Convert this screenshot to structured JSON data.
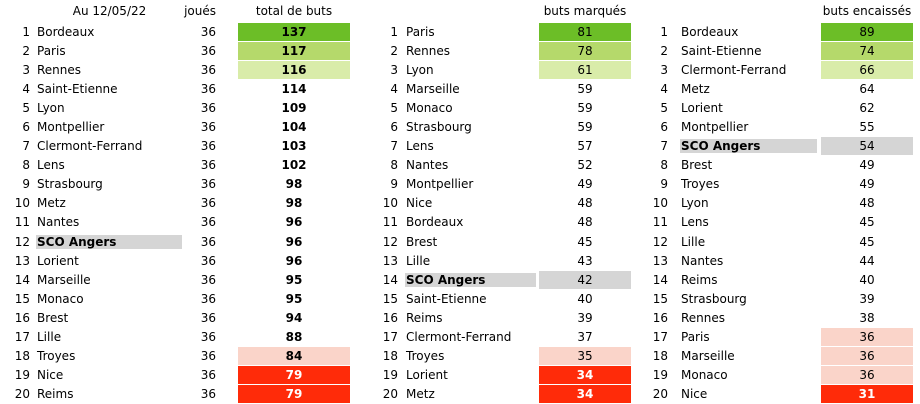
{
  "accent_colors": {
    "green_1": "#6CBE27",
    "green_2": "#B5D96B",
    "green_3": "#D9ECA9",
    "pink": "#FAD4C9",
    "red": "#FF2B09",
    "highlight_gray": "#D5D5D5"
  },
  "tables": [
    {
      "id": "total-de-buts",
      "title": "Au 12/05/22",
      "played_header": "joués",
      "value_header": "total de buts",
      "values_bold": true,
      "rows": [
        {
          "rank": 1,
          "team": "Bordeaux",
          "played": 36,
          "value": 137,
          "value_bg": "green_1"
        },
        {
          "rank": 2,
          "team": "Paris",
          "played": 36,
          "value": 117,
          "value_bg": "green_2"
        },
        {
          "rank": 3,
          "team": "Rennes",
          "played": 36,
          "value": 116,
          "value_bg": "green_3"
        },
        {
          "rank": 4,
          "team": "Saint-Etienne",
          "played": 36,
          "value": 114
        },
        {
          "rank": 5,
          "team": "Lyon",
          "played": 36,
          "value": 109
        },
        {
          "rank": 6,
          "team": "Montpellier",
          "played": 36,
          "value": 104
        },
        {
          "rank": 7,
          "team": "Clermont-Ferrand",
          "played": 36,
          "value": 103
        },
        {
          "rank": 8,
          "team": "Lens",
          "played": 36,
          "value": 102
        },
        {
          "rank": 9,
          "team": "Strasbourg",
          "played": 36,
          "value": 98
        },
        {
          "rank": 10,
          "team": "Metz",
          "played": 36,
          "value": 98
        },
        {
          "rank": 11,
          "team": "Nantes",
          "played": 36,
          "value": 96
        },
        {
          "rank": 12,
          "team": "SCO Angers",
          "played": 36,
          "value": 96,
          "team_highlight": true
        },
        {
          "rank": 13,
          "team": "Lorient",
          "played": 36,
          "value": 96
        },
        {
          "rank": 14,
          "team": "Marseille",
          "played": 36,
          "value": 95
        },
        {
          "rank": 15,
          "team": "Monaco",
          "played": 36,
          "value": 95
        },
        {
          "rank": 16,
          "team": "Brest",
          "played": 36,
          "value": 94
        },
        {
          "rank": 17,
          "team": "Lille",
          "played": 36,
          "value": 88
        },
        {
          "rank": 18,
          "team": "Troyes",
          "played": 36,
          "value": 84,
          "value_bg": "pink"
        },
        {
          "rank": 19,
          "team": "Nice",
          "played": 36,
          "value": 79,
          "value_bg": "red"
        },
        {
          "rank": 20,
          "team": "Reims",
          "played": 36,
          "value": 79,
          "value_bg": "red"
        }
      ]
    },
    {
      "id": "buts-marques",
      "value_header": "buts marqués",
      "values_bold": false,
      "rows": [
        {
          "rank": 1,
          "team": "Paris",
          "value": 81,
          "value_bg": "green_1"
        },
        {
          "rank": 2,
          "team": "Rennes",
          "value": 78,
          "value_bg": "green_2"
        },
        {
          "rank": 3,
          "team": "Lyon",
          "value": 61,
          "value_bg": "green_3"
        },
        {
          "rank": 4,
          "team": "Marseille",
          "value": 59
        },
        {
          "rank": 5,
          "team": "Monaco",
          "value": 59
        },
        {
          "rank": 6,
          "team": "Strasbourg",
          "value": 59
        },
        {
          "rank": 7,
          "team": "Lens",
          "value": 57
        },
        {
          "rank": 8,
          "team": "Nantes",
          "value": 52
        },
        {
          "rank": 9,
          "team": "Montpellier",
          "value": 49
        },
        {
          "rank": 10,
          "team": "Nice",
          "value": 48
        },
        {
          "rank": 11,
          "team": "Bordeaux",
          "value": 48
        },
        {
          "rank": 12,
          "team": "Brest",
          "value": 45
        },
        {
          "rank": 13,
          "team": "Lille",
          "value": 43
        },
        {
          "rank": 14,
          "team": "SCO Angers",
          "value": 42,
          "team_highlight": true,
          "value_bg": "highlight_gray"
        },
        {
          "rank": 15,
          "team": "Saint-Etienne",
          "value": 40
        },
        {
          "rank": 16,
          "team": "Reims",
          "value": 39
        },
        {
          "rank": 17,
          "team": "Clermont-Ferrand",
          "value": 37
        },
        {
          "rank": 18,
          "team": "Troyes",
          "value": 35,
          "value_bg": "pink"
        },
        {
          "rank": 19,
          "team": "Lorient",
          "value": 34,
          "value_bg": "red"
        },
        {
          "rank": 20,
          "team": "Metz",
          "value": 34,
          "value_bg": "red"
        }
      ]
    },
    {
      "id": "buts-encaisses",
      "value_header": "buts encaissés",
      "values_bold": false,
      "rows": [
        {
          "rank": 1,
          "team": "Bordeaux",
          "value": 89,
          "value_bg": "green_1"
        },
        {
          "rank": 2,
          "team": "Saint-Etienne",
          "value": 74,
          "value_bg": "green_2"
        },
        {
          "rank": 3,
          "team": "Clermont-Ferrand",
          "value": 66,
          "value_bg": "green_3"
        },
        {
          "rank": 4,
          "team": "Metz",
          "value": 64
        },
        {
          "rank": 5,
          "team": "Lorient",
          "value": 62
        },
        {
          "rank": 6,
          "team": "Montpellier",
          "value": 55
        },
        {
          "rank": 7,
          "team": "SCO Angers",
          "value": 54,
          "team_highlight": true,
          "value_bg": "highlight_gray"
        },
        {
          "rank": 8,
          "team": "Brest",
          "value": 49
        },
        {
          "rank": 9,
          "team": "Troyes",
          "value": 49
        },
        {
          "rank": 10,
          "team": "Lyon",
          "value": 48
        },
        {
          "rank": 11,
          "team": "Lens",
          "value": 45
        },
        {
          "rank": 12,
          "team": "Lille",
          "value": 45
        },
        {
          "rank": 13,
          "team": "Nantes",
          "value": 44
        },
        {
          "rank": 14,
          "team": "Reims",
          "value": 40
        },
        {
          "rank": 15,
          "team": "Strasbourg",
          "value": 39
        },
        {
          "rank": 16,
          "team": "Rennes",
          "value": 38
        },
        {
          "rank": 17,
          "team": "Paris",
          "value": 36,
          "value_bg": "pink"
        },
        {
          "rank": 18,
          "team": "Marseille",
          "value": 36,
          "value_bg": "pink"
        },
        {
          "rank": 19,
          "team": "Monaco",
          "value": 36,
          "value_bg": "pink"
        },
        {
          "rank": 20,
          "team": "Nice",
          "value": 31,
          "value_bg": "red"
        }
      ]
    }
  ]
}
